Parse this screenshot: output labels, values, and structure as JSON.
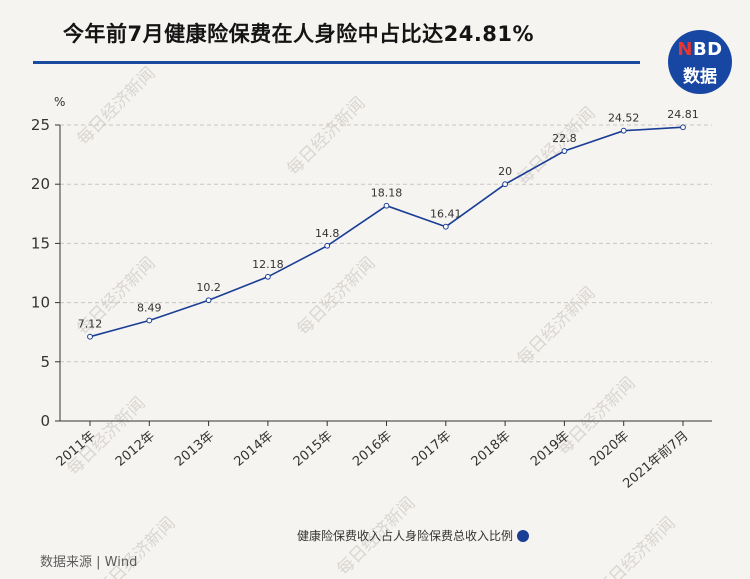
{
  "title": "今年前7月健康险保费在人身险中占比达24.81%",
  "logo": {
    "accent": "N",
    "rest": "BD",
    "sub": "数据"
  },
  "watermark": "每日经济新闻",
  "source": "数据来源 | Wind",
  "colors": {
    "line": "#1a3e96",
    "rule": "#1b4aa1",
    "logo": "#1747a2"
  },
  "chart_data": {
    "type": "line",
    "title": "今年前7月健康险保费在人身险中占比达24.81%",
    "ylabel": "%",
    "xlabel": "",
    "ylim": [
      0,
      25
    ],
    "yticks": [
      0,
      5,
      10,
      15,
      20,
      25
    ],
    "grid": true,
    "legend_position": "bottom-center",
    "categories": [
      "2011年",
      "2012年",
      "2013年",
      "2014年",
      "2015年",
      "2016年",
      "2017年",
      "2018年",
      "2019年",
      "2020年",
      "2021年前7月"
    ],
    "series": [
      {
        "name": "健康险保费收入占人身险保费总收入比例",
        "color": "#1a3e96",
        "values": [
          7.12,
          8.49,
          10.2,
          12.18,
          14.8,
          18.18,
          16.41,
          20,
          22.8,
          24.52,
          24.81
        ]
      }
    ]
  }
}
